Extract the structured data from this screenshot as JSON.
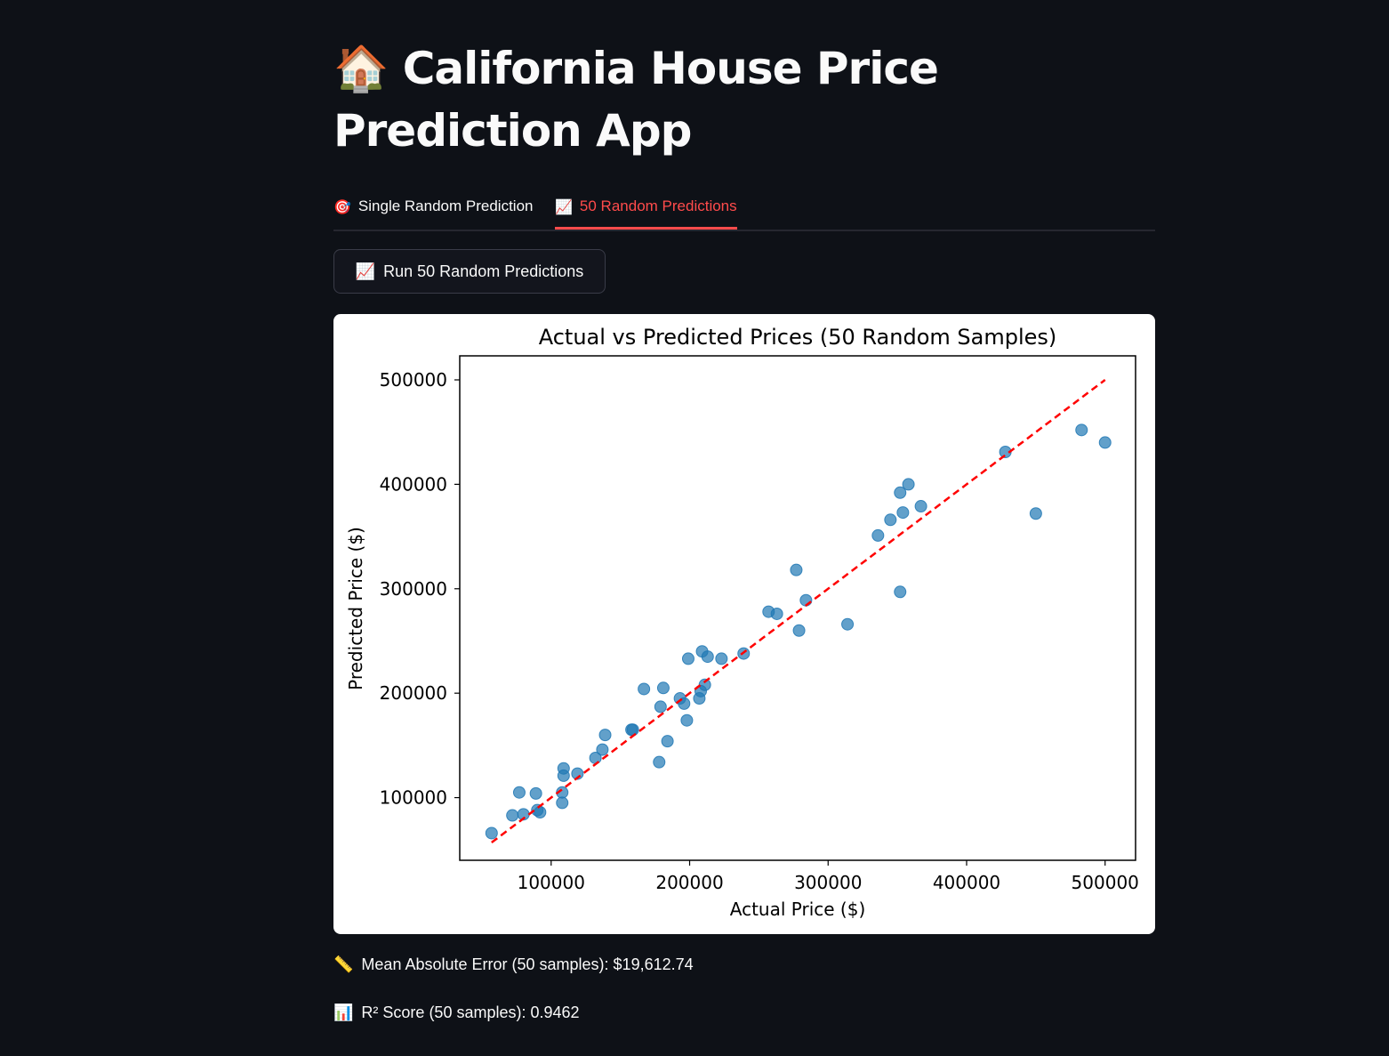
{
  "app": {
    "title_icon": "🏠",
    "title": "California House Price Prediction App"
  },
  "tabs": [
    {
      "icon": "🎯",
      "label": "Single Random Prediction",
      "active": false
    },
    {
      "icon": "📈",
      "label": "50 Random Predictions",
      "active": true
    }
  ],
  "run_button": {
    "icon": "📈",
    "label": "Run 50 Random Predictions"
  },
  "metrics": {
    "mae": {
      "icon": "📏",
      "text": "Mean Absolute Error (50 samples): $19,612.74"
    },
    "r2": {
      "icon": "📊",
      "text": "R² Score (50 samples): 0.9462"
    }
  },
  "colors": {
    "background": "#0e1117",
    "accent": "#ff4b4b",
    "point": "#1f77b4",
    "reference_line": "#ff0000"
  },
  "chart_data": {
    "type": "scatter",
    "title": "Actual vs Predicted Prices (50 Random Samples)",
    "xlabel": "Actual Price ($)",
    "ylabel": "Predicted Price ($)",
    "xlim": [
      34000,
      522000
    ],
    "ylim": [
      40000,
      523000
    ],
    "xticks": [
      100000,
      200000,
      300000,
      400000,
      500000
    ],
    "yticks": [
      100000,
      200000,
      300000,
      400000,
      500000
    ],
    "grid": false,
    "series": [
      {
        "points": [
          [
            57000,
            66000
          ],
          [
            72000,
            83000
          ],
          [
            77000,
            105000
          ],
          [
            80000,
            84000
          ],
          [
            89000,
            104000
          ],
          [
            90000,
            88000
          ],
          [
            92000,
            86000
          ],
          [
            108000,
            95000
          ],
          [
            108000,
            105000
          ],
          [
            109000,
            128000
          ],
          [
            109000,
            121000
          ],
          [
            119000,
            123000
          ],
          [
            132000,
            138000
          ],
          [
            137000,
            146000
          ],
          [
            139000,
            160000
          ],
          [
            158000,
            165000
          ],
          [
            159000,
            165000
          ],
          [
            167000,
            204000
          ],
          [
            178000,
            134000
          ],
          [
            179000,
            187000
          ],
          [
            181000,
            205000
          ],
          [
            184000,
            154000
          ],
          [
            193000,
            195000
          ],
          [
            196000,
            190000
          ],
          [
            198000,
            174000
          ],
          [
            199000,
            233000
          ],
          [
            207000,
            195000
          ],
          [
            208000,
            202000
          ],
          [
            209000,
            240000
          ],
          [
            211000,
            208000
          ],
          [
            213000,
            235000
          ],
          [
            223000,
            233000
          ],
          [
            239000,
            238000
          ],
          [
            257000,
            278000
          ],
          [
            263000,
            276000
          ],
          [
            277000,
            318000
          ],
          [
            279000,
            260000
          ],
          [
            284000,
            289000
          ],
          [
            314000,
            266000
          ],
          [
            336000,
            351000
          ],
          [
            345000,
            366000
          ],
          [
            352000,
            297000
          ],
          [
            352000,
            392000
          ],
          [
            354000,
            373000
          ],
          [
            358000,
            400000
          ],
          [
            367000,
            379000
          ],
          [
            428000,
            431000
          ],
          [
            450000,
            372000
          ],
          [
            483000,
            452000
          ],
          [
            500000,
            440000
          ]
        ]
      }
    ],
    "reference_line": {
      "from": [
        57000,
        57000
      ],
      "to": [
        500000,
        500000
      ],
      "style": "dashed"
    }
  }
}
